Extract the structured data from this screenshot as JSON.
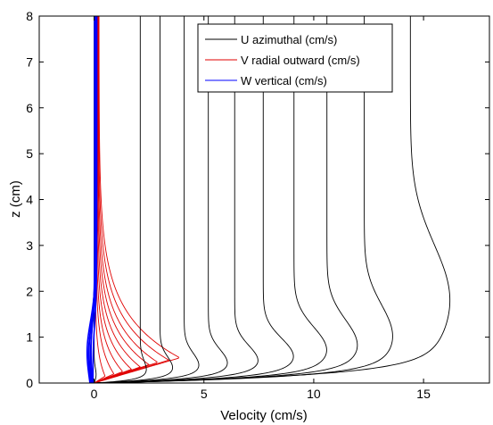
{
  "chart_data": {
    "type": "line",
    "xlabel": "Velocity (cm/s)",
    "ylabel": "z (cm)",
    "xlim": [
      -2.5,
      18
    ],
    "ylim": [
      0,
      8
    ],
    "xticks": [
      0,
      5,
      10,
      15
    ],
    "yticks": [
      0,
      1,
      2,
      3,
      4,
      5,
      6,
      7,
      8
    ],
    "grid": false,
    "legend_position": "top-center",
    "legend": [
      {
        "label": "U azimuthal (cm/s)",
        "color": "#000000"
      },
      {
        "label": "V radial outward (cm/s)",
        "color": "#e00000"
      },
      {
        "label": "W vertical (cm/s)",
        "color": "#0000ff"
      }
    ],
    "series": [
      {
        "name": "U azimuthal (cm/s)",
        "color": "#000000",
        "profiles": [
          {
            "u_inf": 0.0,
            "u_peak": 0.1,
            "delta": 0.15,
            "scale": 0.25
          },
          {
            "u_inf": 2.1,
            "u_peak": 2.4,
            "delta": 0.25,
            "scale": 0.2
          },
          {
            "u_inf": 3.0,
            "u_peak": 3.6,
            "delta": 0.3,
            "scale": 0.22
          },
          {
            "u_inf": 4.1,
            "u_peak": 4.8,
            "delta": 0.35,
            "scale": 0.25
          },
          {
            "u_inf": 5.2,
            "u_peak": 6.1,
            "delta": 0.4,
            "scale": 0.27
          },
          {
            "u_inf": 6.4,
            "u_peak": 7.5,
            "delta": 0.45,
            "scale": 0.3
          },
          {
            "u_inf": 7.7,
            "u_peak": 9.1,
            "delta": 0.55,
            "scale": 0.32
          },
          {
            "u_inf": 9.1,
            "u_peak": 10.6,
            "delta": 0.7,
            "scale": 0.35
          },
          {
            "u_inf": 10.6,
            "u_peak": 12.0,
            "delta": 0.8,
            "scale": 0.4
          },
          {
            "u_inf": 12.3,
            "u_peak": 13.6,
            "delta": 1.0,
            "scale": 0.45
          },
          {
            "u_inf": 14.4,
            "u_peak": 16.2,
            "delta": 1.8,
            "scale": 0.6
          }
        ]
      },
      {
        "name": "V radial outward (cm/s)",
        "color": "#e00000",
        "profiles": [
          {
            "peak": 0.5,
            "z_peak": 0.15,
            "decay": 0.5,
            "tail": 0.05
          },
          {
            "peak": 0.9,
            "z_peak": 0.2,
            "decay": 0.6,
            "tail": 0.08
          },
          {
            "peak": 1.3,
            "z_peak": 0.25,
            "decay": 0.65,
            "tail": 0.1
          },
          {
            "peak": 1.7,
            "z_peak": 0.3,
            "decay": 0.7,
            "tail": 0.12
          },
          {
            "peak": 2.1,
            "z_peak": 0.35,
            "decay": 0.75,
            "tail": 0.14
          },
          {
            "peak": 2.5,
            "z_peak": 0.4,
            "decay": 0.8,
            "tail": 0.16
          },
          {
            "peak": 2.9,
            "z_peak": 0.45,
            "decay": 0.85,
            "tail": 0.18
          },
          {
            "peak": 3.4,
            "z_peak": 0.5,
            "decay": 0.9,
            "tail": 0.2
          },
          {
            "peak": 3.9,
            "z_peak": 0.55,
            "decay": 0.95,
            "tail": 0.22
          }
        ]
      },
      {
        "name": "W vertical (cm/s)",
        "color": "#0000ff",
        "profiles": [
          {
            "amp": -0.15,
            "offset": 0.02
          },
          {
            "amp": -0.25,
            "offset": 0.04
          },
          {
            "amp": -0.35,
            "offset": 0.06
          },
          {
            "amp": -0.2,
            "offset": 0.08
          },
          {
            "amp": -0.3,
            "offset": 0.1
          },
          {
            "amp": -0.1,
            "offset": 0.12
          }
        ]
      }
    ]
  }
}
